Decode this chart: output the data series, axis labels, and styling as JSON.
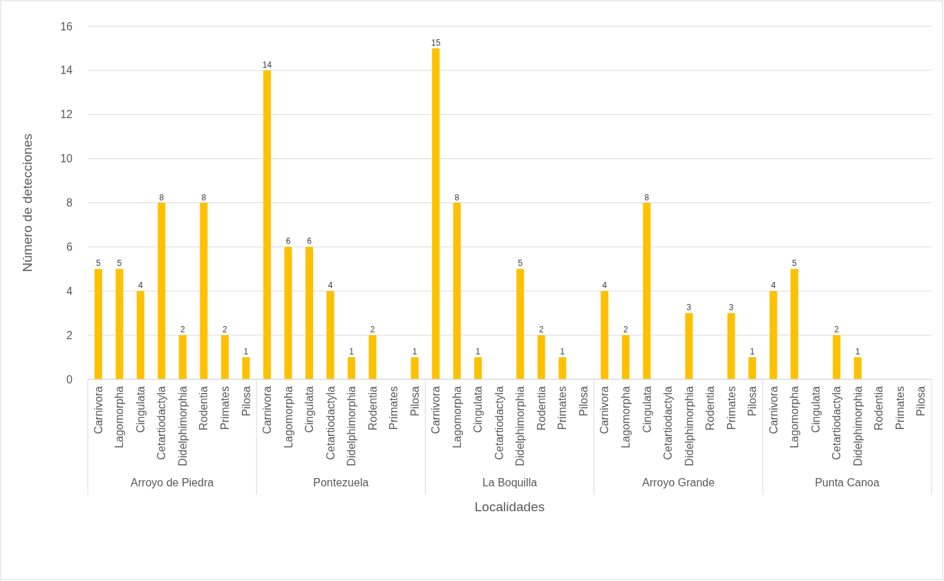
{
  "chart_data": {
    "type": "bar",
    "xlabel": "Localidades",
    "ylabel": "Número de detecciones",
    "categories": [
      "Carnivora",
      "Lagomorpha",
      "Cingulata",
      "Cetartiodactyla",
      "Didelphimorphia",
      "Rodentia",
      "Primates",
      "Pilosa",
      "Carnivora",
      "Lagomorpha",
      "Cingulata",
      "Cetartiodactyla",
      "Didelphimorphia",
      "Rodentia",
      "Primates",
      "Pilosa",
      "Carnivora",
      "Lagomorpha",
      "Cingulata",
      "Cetartiodactyla",
      "Didelphimorphia",
      "Rodentia",
      "Primates",
      "Pilosa",
      "Carnivora",
      "Lagomorpha",
      "Cingulata",
      "Cetartiodactyla",
      "Didelphimorphia",
      "Rodentia",
      "Primates",
      "Pilosa",
      "Carnivora",
      "Lagomorpha",
      "Cingulata",
      "Cetartiodactyla",
      "Didelphimorphia",
      "Rodentia",
      "Primates",
      "Pilosa"
    ],
    "values": [
      5,
      5,
      4,
      8,
      2,
      8,
      2,
      1,
      14,
      6,
      6,
      4,
      1,
      2,
      null,
      1,
      15,
      8,
      1,
      null,
      5,
      2,
      1,
      null,
      4,
      2,
      8,
      null,
      3,
      null,
      3,
      1,
      4,
      5,
      null,
      2,
      1,
      null,
      null,
      null
    ],
    "color": "#ffc000",
    "ylim": [
      0,
      16
    ],
    "yticks": [
      0,
      2,
      4,
      6,
      8,
      10,
      12,
      14,
      16
    ],
    "grid": "y",
    "data_labels": true,
    "annotations": [
      "Arroyo de Piedra",
      "Pontezuela",
      "La Boquilla",
      "Arroyo Grande",
      "Punta Canoa"
    ]
  }
}
